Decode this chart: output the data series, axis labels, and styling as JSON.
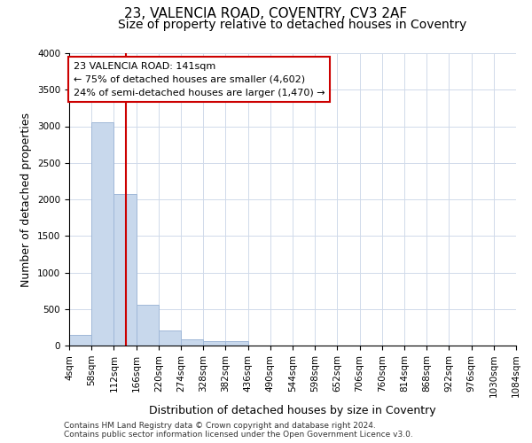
{
  "title": "23, VALENCIA ROAD, COVENTRY, CV3 2AF",
  "subtitle": "Size of property relative to detached houses in Coventry",
  "xlabel": "Distribution of detached houses by size in Coventry",
  "ylabel": "Number of detached properties",
  "bin_edges": [
    4,
    58,
    112,
    166,
    220,
    274,
    328,
    382,
    436,
    490,
    544,
    598,
    652,
    706,
    760,
    814,
    868,
    922,
    976,
    1030,
    1084
  ],
  "bar_heights": [
    150,
    3050,
    2070,
    560,
    205,
    80,
    55,
    55,
    0,
    0,
    0,
    0,
    0,
    0,
    0,
    0,
    0,
    0,
    0,
    0
  ],
  "bar_color": "#c8d8ec",
  "bar_edge_color": "#a0b8d8",
  "vline_x": 141,
  "vline_color": "#cc0000",
  "ylim": [
    0,
    4000
  ],
  "yticks": [
    0,
    500,
    1000,
    1500,
    2000,
    2500,
    3000,
    3500,
    4000
  ],
  "annotation_line1": "23 VALENCIA ROAD: 141sqm",
  "annotation_line2": "← 75% of detached houses are smaller (4,602)",
  "annotation_line3": "24% of semi-detached houses are larger (1,470) →",
  "annotation_box_color": "#ffffff",
  "annotation_box_edge": "#cc0000",
  "footer_line1": "Contains HM Land Registry data © Crown copyright and database right 2024.",
  "footer_line2": "Contains public sector information licensed under the Open Government Licence v3.0.",
  "background_color": "#ffffff",
  "grid_color": "#d0daea",
  "title_fontsize": 11,
  "subtitle_fontsize": 10,
  "tick_label_fontsize": 7.5,
  "ylabel_fontsize": 9,
  "xlabel_fontsize": 9,
  "annotation_fontsize": 8,
  "footer_fontsize": 6.5
}
